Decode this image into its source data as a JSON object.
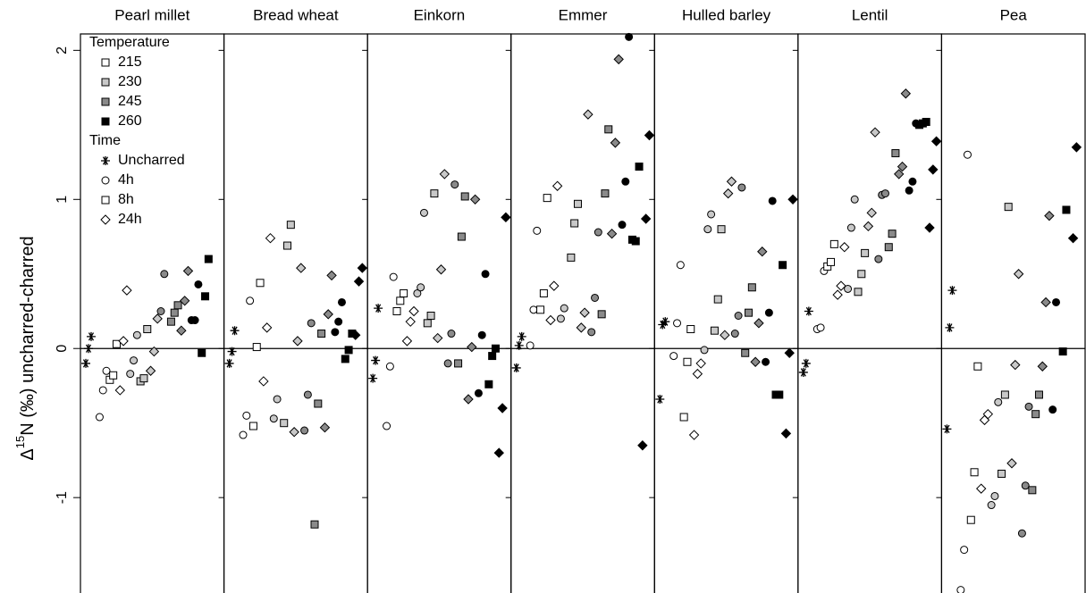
{
  "chart_data": {
    "type": "faceted-scatter",
    "ylabel": {
      "prefix": "Δ",
      "superscript": "15",
      "suffix": "N (‰) uncharred-charred"
    },
    "ylim": [
      -1.64,
      2.11
    ],
    "yticks": [
      2,
      1,
      0,
      -1
    ],
    "reference_line": 0,
    "legend": {
      "corner": "top-left",
      "temperature": {
        "title": "Temperature",
        "items": [
          {
            "label": "215",
            "color": "#ffffff"
          },
          {
            "label": "230",
            "color": "#c8c8c8"
          },
          {
            "label": "245",
            "color": "#8a8a8a"
          },
          {
            "label": "260",
            "color": "#000000"
          }
        ]
      },
      "time": {
        "title": "Time",
        "items": [
          {
            "label": "Uncharred",
            "marker": "asterisk"
          },
          {
            "label": "4h",
            "marker": "circle"
          },
          {
            "label": "8h",
            "marker": "square"
          },
          {
            "label": "24h",
            "marker": "diamond"
          }
        ]
      }
    },
    "panels": [
      {
        "title": "Pearl millet",
        "uncharred": [
          -0.1,
          0.0,
          0.08
        ],
        "charred": [
          [
            [
              -0.46,
              -0.28,
              -0.15
            ],
            [
              -0.21,
              -0.18,
              0.03
            ],
            [
              -0.28,
              0.05,
              0.39
            ]
          ],
          [
            [
              -0.17,
              -0.08,
              0.09
            ],
            [
              -0.22,
              -0.2,
              0.13
            ],
            [
              -0.15,
              -0.02,
              0.2
            ]
          ],
          [
            [
              0.25,
              0.5
            ],
            [
              0.18,
              0.24,
              0.29
            ],
            [
              0.12,
              0.32,
              0.52
            ]
          ],
          [
            [
              0.19,
              0.19,
              0.43
            ],
            [
              -0.03,
              0.35,
              0.6
            ],
            []
          ]
        ]
      },
      {
        "title": "Bread wheat",
        "uncharred": [
          -0.1,
          -0.02,
          0.12
        ],
        "charred": [
          [
            [
              -0.58,
              -0.45,
              0.32
            ],
            [
              -0.52,
              0.01,
              0.44
            ],
            [
              -0.22,
              0.14,
              0.74
            ]
          ],
          [
            [
              -0.47,
              -0.34
            ],
            [
              -0.5,
              0.69,
              0.83
            ],
            [
              -0.56,
              0.05,
              0.54
            ]
          ],
          [
            [
              -0.55,
              -0.31,
              0.17
            ],
            [
              -1.18,
              -0.37,
              0.1
            ],
            [
              -0.53,
              0.23,
              0.49
            ]
          ],
          [
            [
              0.11,
              0.18,
              0.31
            ],
            [
              -0.07,
              -0.01,
              0.1
            ],
            [
              0.09,
              0.45,
              0.54
            ]
          ]
        ]
      },
      {
        "title": "Einkorn",
        "uncharred": [
          -0.2,
          -0.08,
          0.27
        ],
        "charred": [
          [
            [
              -0.52,
              -0.12,
              0.48
            ],
            [
              0.25,
              0.32,
              0.37
            ],
            [
              0.05,
              0.18,
              0.25
            ]
          ],
          [
            [
              0.37,
              0.41,
              0.91
            ],
            [
              0.17,
              0.22,
              1.04
            ],
            [
              0.07,
              0.53,
              1.17
            ]
          ],
          [
            [
              -0.1,
              0.1,
              1.1
            ],
            [
              -0.1,
              0.75,
              1.02
            ],
            [
              -0.34,
              0.01,
              1.0
            ]
          ],
          [
            [
              -0.3,
              0.09,
              0.5
            ],
            [
              -0.24,
              -0.05,
              0.0
            ],
            [
              -0.7,
              -0.4,
              0.88
            ]
          ]
        ]
      },
      {
        "title": "Emmer",
        "uncharred": [
          -0.13,
          0.02,
          0.08
        ],
        "charred": [
          [
            [
              0.02,
              0.26,
              0.79
            ],
            [
              0.26,
              0.37,
              1.01
            ],
            [
              0.19,
              0.42,
              1.09
            ]
          ],
          [
            [
              0.2,
              0.27
            ],
            [
              0.61,
              0.84,
              0.97
            ],
            [
              0.14,
              0.24,
              1.57
            ]
          ],
          [
            [
              0.11,
              0.34,
              0.78
            ],
            [
              0.23,
              1.04,
              1.47
            ],
            [
              0.77,
              1.38,
              1.94
            ]
          ],
          [
            [
              0.83,
              1.12,
              2.09
            ],
            [
              0.73,
              0.72,
              1.22
            ],
            [
              -0.65,
              0.87,
              1.43
            ]
          ]
        ]
      },
      {
        "title": "Hulled barley",
        "uncharred": [
          -0.34,
          0.16,
          0.18
        ],
        "charred": [
          [
            [
              -0.05,
              0.17,
              0.56
            ],
            [
              -0.46,
              -0.09,
              0.13
            ],
            [
              -0.58,
              -0.17,
              -0.1
            ]
          ],
          [
            [
              -0.01,
              0.8,
              0.9
            ],
            [
              0.12,
              0.33,
              0.8
            ],
            [
              0.09,
              1.04,
              1.12
            ]
          ],
          [
            [
              0.1,
              0.22,
              1.08
            ],
            [
              -0.03,
              0.24,
              0.41
            ],
            [
              -0.09,
              0.17,
              0.65
            ]
          ],
          [
            [
              -0.09,
              0.24,
              0.99
            ],
            [
              -0.31,
              -0.31,
              0.56
            ],
            [
              -0.57,
              -0.03,
              1.0
            ]
          ]
        ]
      },
      {
        "title": "Lentil",
        "uncharred": [
          -0.16,
          -0.1,
          0.25
        ],
        "charred": [
          [
            [
              0.13,
              0.14,
              0.52
            ],
            [
              0.55,
              0.58,
              0.7
            ],
            [
              0.36,
              0.42,
              0.68
            ]
          ],
          [
            [
              0.4,
              0.81,
              1.0
            ],
            [
              0.38,
              0.5,
              0.64
            ],
            [
              0.82,
              0.91,
              1.45
            ]
          ],
          [
            [
              0.6,
              1.03,
              1.04
            ],
            [
              0.68,
              0.77,
              1.31
            ],
            [
              1.17,
              1.22,
              1.71
            ]
          ],
          [
            [
              1.06,
              1.12,
              1.51
            ],
            [
              1.5,
              1.51,
              1.52
            ],
            [
              0.81,
              1.2,
              1.39
            ]
          ]
        ]
      },
      {
        "title": "Pea",
        "uncharred": [
          -0.54,
          0.14,
          0.39
        ],
        "charred": [
          [
            [
              -1.62,
              -1.35,
              1.3
            ],
            [
              -1.15,
              -0.83,
              -0.12
            ],
            [
              -0.94,
              -0.48,
              -0.44
            ]
          ],
          [
            [
              -1.05,
              -0.99,
              -0.36
            ],
            [
              -0.84,
              -0.31,
              0.95
            ],
            [
              -0.77,
              -0.11,
              0.5
            ]
          ],
          [
            [
              -1.24,
              -0.92,
              -0.39
            ],
            [
              -0.95,
              -0.44,
              -0.31
            ],
            [
              -0.12,
              0.31,
              0.89
            ]
          ],
          [
            [
              -0.41,
              0.31
            ],
            [
              -0.02,
              0.93
            ],
            [
              0.74,
              1.35
            ]
          ]
        ]
      }
    ]
  }
}
